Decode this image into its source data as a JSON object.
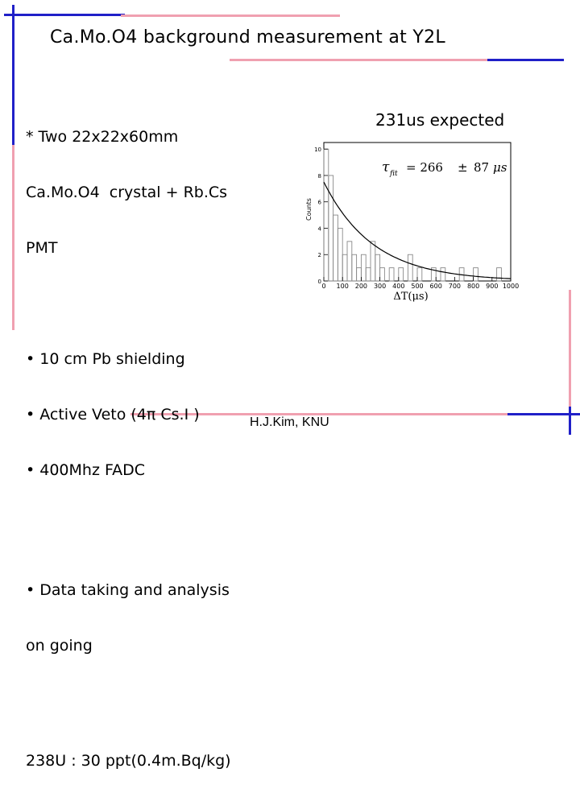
{
  "slide": {
    "title": "Ca.Mo.O4 background measurement  at Y2L",
    "bullets": [
      "* Two 22x22x60mm",
      "Ca.Mo.O4  crystal + Rb.Cs",
      "PMT",
      "",
      "• 10 cm Pb shielding",
      "• Active Veto (4π Cs.I )",
      "• 400Mhz FADC",
      "",
      "• Data taking and analysis",
      "on going",
      "",
      "238U : 30 ppt(0.4m.Bq/kg)"
    ],
    "expected_label": "231us expected",
    "author": "H.J.Kim, KNU",
    "colors": {
      "blue": "#2020c8",
      "pink": "#f0a0b0"
    }
  },
  "chart_data": {
    "type": "bar",
    "subtype": "histogram-with-exponential-fit",
    "title": "",
    "xlabel": "ΔT(μs)",
    "ylabel": "Counts",
    "xlim": [
      0,
      1000
    ],
    "ylim": [
      0,
      10.5
    ],
    "x_ticks": [
      "0",
      "100",
      "200",
      "300",
      "400",
      "500",
      "600",
      "700",
      "800",
      "900",
      "1000"
    ],
    "y_ticks": [
      "0",
      "2",
      "4",
      "6",
      "8",
      "10"
    ],
    "bin_width": 25,
    "bin_starts": [
      0,
      25,
      50,
      75,
      100,
      125,
      150,
      175,
      200,
      225,
      250,
      275,
      300,
      325,
      350,
      375,
      400,
      425,
      450,
      475,
      500,
      525,
      550,
      575,
      600,
      625,
      650,
      675,
      700,
      725,
      750,
      775,
      800,
      825,
      850,
      875,
      900,
      925,
      950,
      975
    ],
    "counts": [
      10,
      8,
      5,
      4,
      2,
      3,
      2,
      1,
      2,
      1,
      3,
      2,
      1,
      0,
      1,
      0,
      1,
      0,
      2,
      0,
      1,
      0,
      0,
      1,
      0,
      1,
      0,
      0,
      0,
      1,
      0,
      0,
      1,
      0,
      0,
      0,
      0,
      1,
      0,
      0
    ],
    "fit": {
      "type": "exponential",
      "amplitude": 7.5,
      "tau": 266
    },
    "fit_label": {
      "symbol": "τ",
      "subscript": "fit",
      "equals": "= 266",
      "pm": "±",
      "error": "87",
      "unit": "μs"
    }
  }
}
